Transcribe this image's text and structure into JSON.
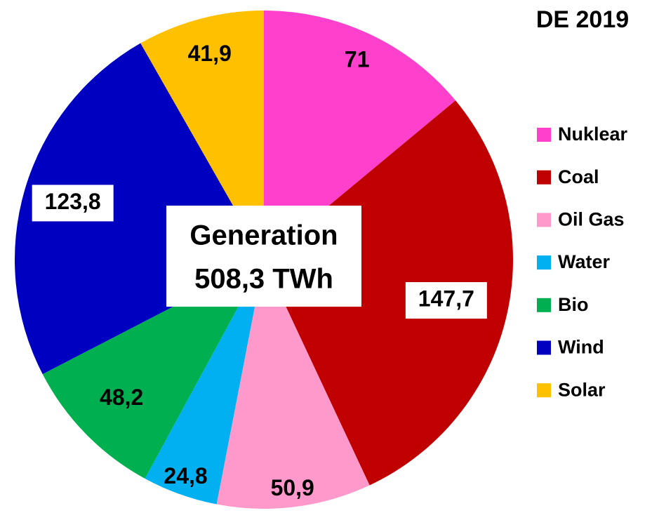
{
  "chart_data": {
    "type": "pie",
    "title": "DE 2019",
    "annotations": [
      "Generation",
      "508,3 TWh"
    ],
    "categories": [
      "Nuklear",
      "Coal",
      "Oil Gas",
      "Water",
      "Bio",
      "Wind",
      "Solar"
    ],
    "values": [
      71,
      147.7,
      50.9,
      24.8,
      48.2,
      123.8,
      41.9
    ],
    "value_labels": [
      "71",
      "147,7",
      "50,9",
      "24,8",
      "48,2",
      "123,8",
      "41,9"
    ],
    "colors": [
      "#ff40cc",
      "#c00000",
      "#ff99cc",
      "#00b0f0",
      "#00b050",
      "#0000c0",
      "#ffc000"
    ],
    "legend": "right"
  }
}
